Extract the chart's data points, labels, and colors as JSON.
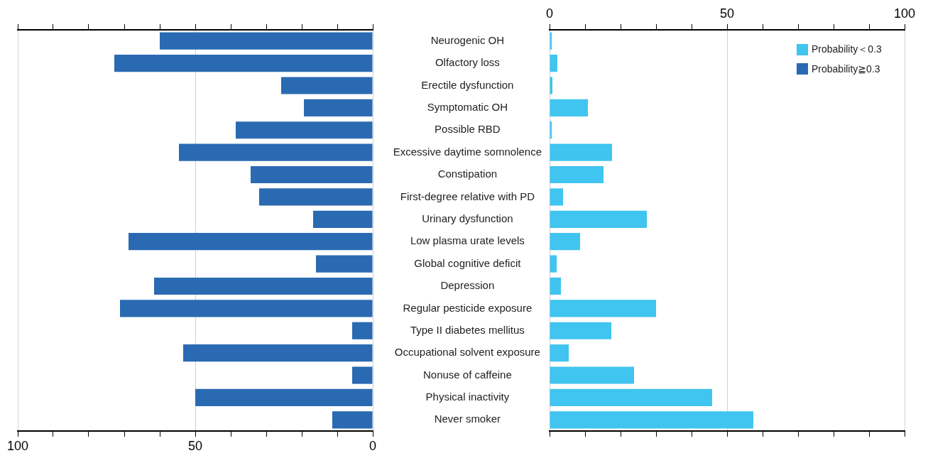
{
  "chart_data": [
    {
      "type": "bar",
      "orientation": "horizontal",
      "categories": [
        null,
        null,
        null,
        null,
        null,
        null,
        null,
        null,
        null,
        null,
        null,
        null,
        null,
        null,
        null,
        null,
        null,
        null
      ],
      "series": [
        {
          "name": "Probability≧0.3",
          "color": "#2a6ab3",
          "values": [
            60,
            72.8,
            25.8,
            19.4,
            38.6,
            54.6,
            34.4,
            32,
            16.8,
            68.8,
            16,
            61.6,
            71.2,
            5.8,
            53.4,
            5.8,
            50,
            11.4
          ]
        }
      ],
      "xlim": [
        100,
        0
      ],
      "xticks": [
        100,
        {
          "value": 90,
          "label": null
        },
        {
          "value": 80,
          "label": null
        },
        {
          "value": 70,
          "label": null
        },
        {
          "value": 60,
          "label": null
        },
        50,
        {
          "value": 40,
          "label": null
        },
        {
          "value": 30,
          "label": null
        },
        {
          "value": 20,
          "label": null
        },
        {
          "value": 10,
          "label": null
        },
        0
      ],
      "tick_labels": "x",
      "grid": "x",
      "legend": "right"
    },
    {
      "type": "bar",
      "orientation": "horizontal",
      "categories": [
        "Neurogenic OH",
        "Olfactory loss",
        "Erectile dysfunction",
        "Symptomatic OH",
        "Possible RBD",
        "Excessive daytime somnolence",
        "Constipation",
        "First-degree relative with PD",
        "Urinary dysfunction",
        "Low plasma urate levels",
        "Global cognitive deficit",
        "Depression",
        "Regular pesticide exposure",
        "Type II diabetes mellitus",
        "Occupational solvent exposure",
        "Nonuse of caffeine",
        "Physical inactivity",
        "Never smoker"
      ],
      "series": [
        {
          "name": "Probability＜0.3",
          "color": "#40c4f0",
          "values": [
            0.6,
            2.2,
            0.8,
            10.8,
            0.6,
            17.6,
            15.2,
            3.8,
            27.4,
            8.6,
            2,
            3.2,
            30,
            17.4,
            5.4,
            23.8,
            45.8,
            57.4
          ]
        }
      ],
      "xlim": [
        0,
        100
      ],
      "xticks": [
        0,
        {
          "value": 10,
          "label": null
        },
        {
          "value": 20,
          "label": null
        },
        {
          "value": 30,
          "label": null
        },
        {
          "value": 40,
          "label": null
        },
        50,
        {
          "value": 60,
          "label": null
        },
        {
          "value": 70,
          "label": null
        },
        {
          "value": 80,
          "label": null
        },
        {
          "value": 90,
          "label": null
        },
        100
      ],
      "grid": "x",
      "legend": "top right"
    }
  ]
}
